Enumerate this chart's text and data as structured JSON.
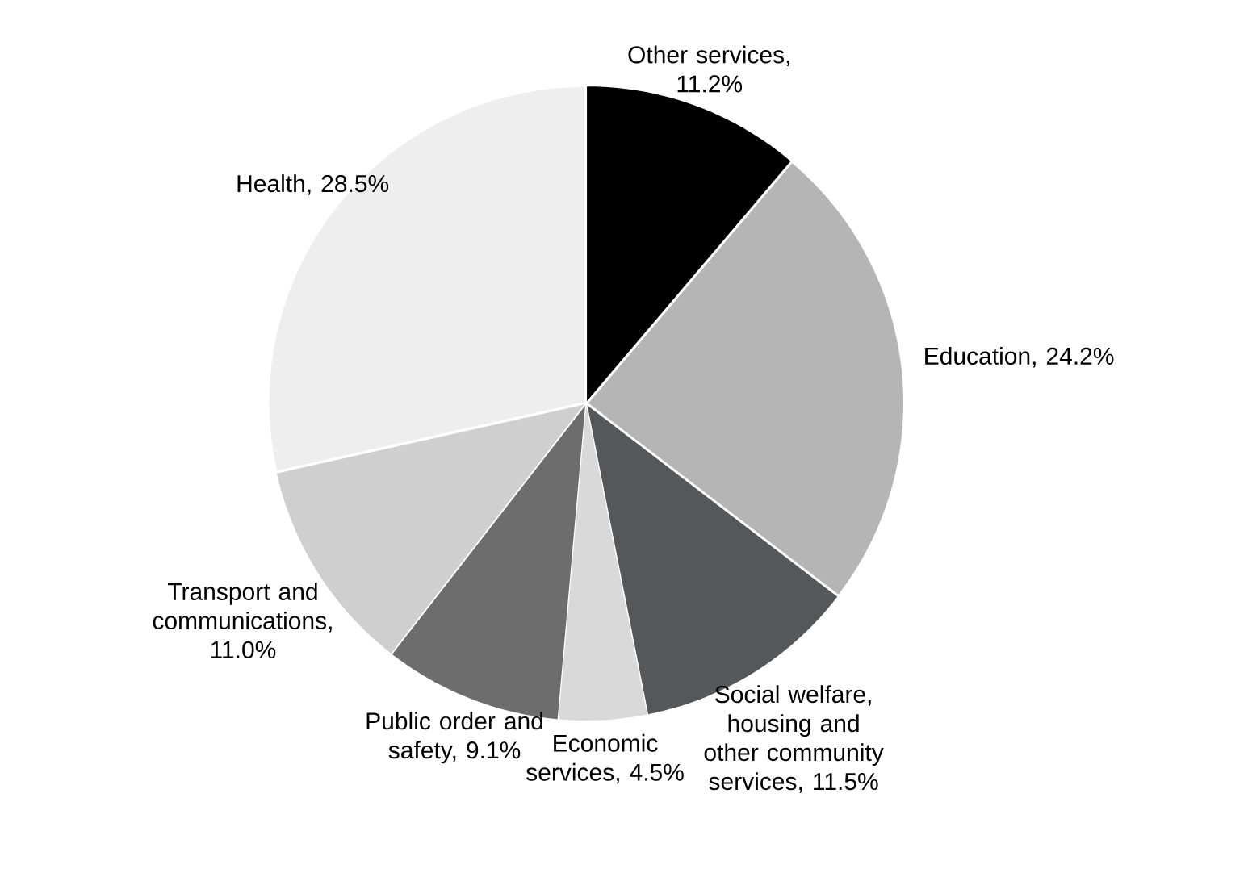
{
  "chart_data": {
    "type": "pie",
    "categories": [
      "Other services, 11.2%",
      "Education, 24.2%",
      "Social welfare, housing and other community services, 11.5%",
      "Economic services, 4.5%",
      "Public order and safety, 9.1%",
      "Transport and communications, 11.0%",
      "Health, 28.5%"
    ],
    "values": [
      11.2,
      24.2,
      11.5,
      4.5,
      9.1,
      11.0,
      28.5
    ],
    "colors": [
      "#000000",
      "#b5b5b5",
      "#54585a",
      "#d9d9d9",
      "#6d6d6d",
      "#cfcfcf",
      "#eeeeee"
    ]
  }
}
